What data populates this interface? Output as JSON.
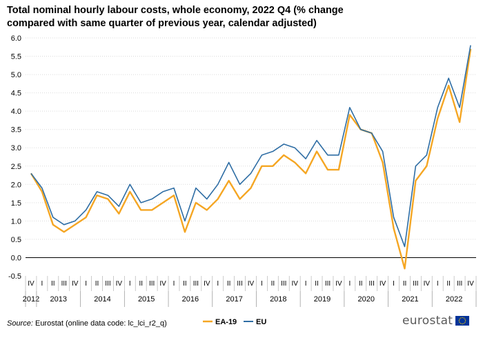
{
  "title": "Total nominal hourly labour costs, whole economy, 2022 Q4 (% change compared with same quarter of previous year, calendar adjusted)",
  "source": {
    "label": "Source:",
    "text": " Eurostat (online data code: lc_lci_r2_q)"
  },
  "logo": {
    "text": "eurostat"
  },
  "colors": {
    "ea19": "#f5a623",
    "eu": "#2e6da4",
    "grid": "#d9d9d9",
    "axis": "#000000"
  },
  "chart_data": {
    "type": "line",
    "title": "Total nominal hourly labour costs, whole economy, 2022 Q4 (% change compared with same quarter of previous year, calendar adjusted)",
    "xlabel": "",
    "ylabel": "",
    "ylim": [
      -0.5,
      6.0
    ],
    "yticks": [
      "-0.5",
      "0.0",
      "0.5",
      "1.0",
      "1.5",
      "2.0",
      "2.5",
      "3.0",
      "3.5",
      "4.0",
      "4.5",
      "5.0",
      "5.5",
      "6.0"
    ],
    "grid": true,
    "legend_position": "bottom-center",
    "quarters": [
      "IV",
      "I",
      "II",
      "III",
      "IV",
      "I",
      "II",
      "III",
      "IV",
      "I",
      "II",
      "III",
      "IV",
      "I",
      "II",
      "III",
      "IV",
      "I",
      "II",
      "III",
      "IV",
      "I",
      "II",
      "III",
      "IV",
      "I",
      "II",
      "III",
      "IV",
      "I",
      "II",
      "III",
      "IV",
      "I",
      "II",
      "III",
      "IV",
      "I",
      "II",
      "III",
      "IV"
    ],
    "years": [
      {
        "label": "2012",
        "quarters": 1
      },
      {
        "label": "2013",
        "quarters": 4
      },
      {
        "label": "2014",
        "quarters": 4
      },
      {
        "label": "2015",
        "quarters": 4
      },
      {
        "label": "2016",
        "quarters": 4
      },
      {
        "label": "2017",
        "quarters": 4
      },
      {
        "label": "2018",
        "quarters": 4
      },
      {
        "label": "2019",
        "quarters": 4
      },
      {
        "label": "2020",
        "quarters": 4
      },
      {
        "label": "2021",
        "quarters": 4
      },
      {
        "label": "2022",
        "quarters": 4
      }
    ],
    "series": [
      {
        "name": "EA-19",
        "color": "#f5a623",
        "values": [
          2.3,
          1.8,
          0.9,
          0.7,
          0.9,
          1.1,
          1.7,
          1.6,
          1.2,
          1.8,
          1.3,
          1.3,
          1.5,
          1.7,
          0.7,
          1.5,
          1.3,
          1.6,
          2.1,
          1.6,
          1.9,
          2.5,
          2.5,
          2.8,
          2.6,
          2.3,
          2.9,
          2.4,
          2.4,
          3.9,
          3.5,
          3.4,
          2.6,
          0.8,
          -0.3,
          2.1,
          2.5,
          3.8,
          4.7,
          3.7,
          5.7
        ]
      },
      {
        "name": "EU",
        "color": "#2e6da4",
        "values": [
          2.3,
          1.9,
          1.1,
          0.9,
          1.0,
          1.3,
          1.8,
          1.7,
          1.4,
          2.0,
          1.5,
          1.6,
          1.8,
          1.9,
          1.0,
          1.9,
          1.6,
          2.0,
          2.6,
          2.0,
          2.3,
          2.8,
          2.9,
          3.1,
          3.0,
          2.7,
          3.2,
          2.8,
          2.8,
          4.1,
          3.5,
          3.4,
          2.9,
          1.1,
          0.3,
          2.5,
          2.8,
          4.1,
          4.9,
          4.1,
          5.8
        ]
      }
    ]
  }
}
